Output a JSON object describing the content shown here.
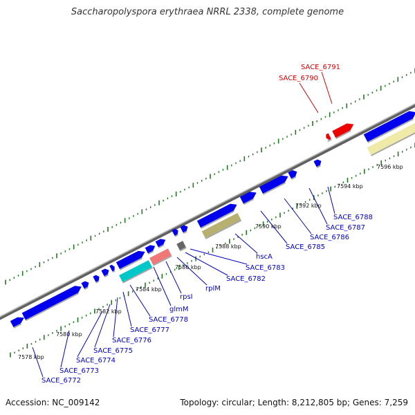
{
  "title": "Saccharopolyspora erythraea NRRL 2338, complete genome",
  "footer": {
    "accession": "Accession: NC_009142",
    "summary": "Topology: circular; Length: 8,212,805 bp; Genes: 7,259"
  },
  "colors": {
    "backbone": "#8a8a8a",
    "blue_gene": "#0000ee",
    "red_gene": "#ee0000",
    "teal_gene": "#00c8c8",
    "pink_gene": "#f07878",
    "olive_gene": "#b8b070",
    "yellow_gene": "#f0eaa8",
    "gray_gene": "#666666",
    "tick": "#1f7a1f",
    "label_blue": "#0000cc",
    "label_red": "#dd0000"
  },
  "scale_labels": [
    "7578 kbp",
    "7580 kbp",
    "7582 kbp",
    "7584 kbp",
    "7586 kbp",
    "7588 kbp",
    "7590 kbp",
    "7592 kbp",
    "7594 kbp",
    "7596 kbp"
  ],
  "gene_labels": [
    {
      "text": "SACE_6772",
      "color": "blue"
    },
    {
      "text": "SACE_6773",
      "color": "blue"
    },
    {
      "text": "SACE_6774",
      "color": "blue"
    },
    {
      "text": "SACE_6775",
      "color": "blue"
    },
    {
      "text": "SACE_6776",
      "color": "blue"
    },
    {
      "text": "SACE_6777",
      "color": "blue"
    },
    {
      "text": "SACE_6778",
      "color": "blue"
    },
    {
      "text": "glmM",
      "color": "blue"
    },
    {
      "text": "rpsI",
      "color": "blue"
    },
    {
      "text": "rplM",
      "color": "blue"
    },
    {
      "text": "SACE_6782",
      "color": "blue"
    },
    {
      "text": "SACE_6783",
      "color": "blue"
    },
    {
      "text": "hscA",
      "color": "blue"
    },
    {
      "text": "SACE_6785",
      "color": "blue"
    },
    {
      "text": "SACE_6786",
      "color": "blue"
    },
    {
      "text": "SACE_6787",
      "color": "blue"
    },
    {
      "text": "SACE_6788",
      "color": "blue"
    },
    {
      "text": "SACE_6790",
      "color": "red"
    },
    {
      "text": "SACE_6791",
      "color": "red"
    }
  ]
}
